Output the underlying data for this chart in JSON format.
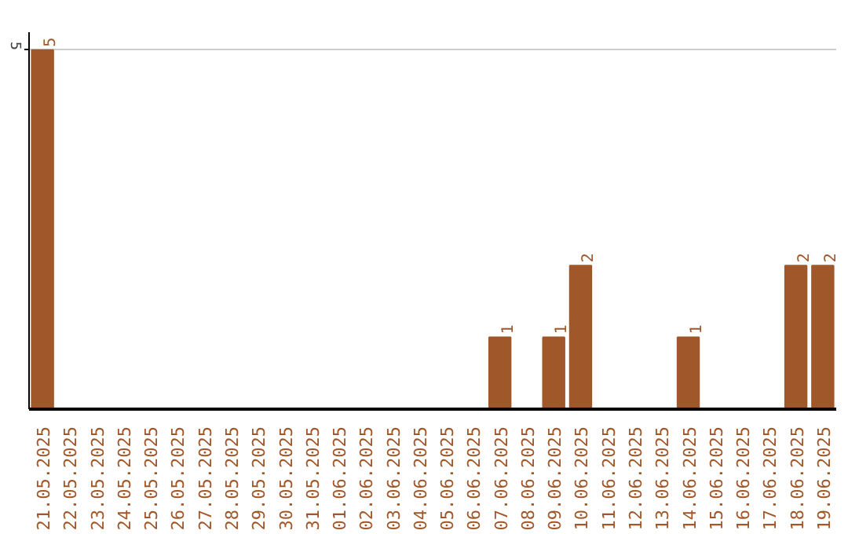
{
  "chart_data": {
    "type": "bar",
    "categories": [
      "21.05.2025",
      "22.05.2025",
      "23.05.2025",
      "24.05.2025",
      "25.05.2025",
      "26.05.2025",
      "27.05.2025",
      "28.05.2025",
      "29.05.2025",
      "30.05.2025",
      "31.05.2025",
      "01.06.2025",
      "02.06.2025",
      "03.06.2025",
      "04.06.2025",
      "05.06.2025",
      "06.06.2025",
      "07.06.2025",
      "08.06.2025",
      "09.06.2025",
      "10.06.2025",
      "11.06.2025",
      "12.06.2025",
      "13.06.2025",
      "14.06.2025",
      "15.06.2025",
      "16.06.2025",
      "17.06.2025",
      "18.06.2025",
      "19.06.2025"
    ],
    "values": [
      5,
      0,
      0,
      0,
      0,
      0,
      0,
      0,
      0,
      0,
      0,
      0,
      0,
      0,
      0,
      0,
      0,
      1,
      0,
      1,
      2,
      0,
      0,
      0,
      1,
      0,
      0,
      0,
      2,
      2
    ],
    "value_labels": [
      "5",
      null,
      null,
      null,
      null,
      null,
      null,
      null,
      null,
      null,
      null,
      null,
      null,
      null,
      null,
      null,
      null,
      "1",
      null,
      "1",
      "2",
      null,
      null,
      null,
      "1",
      null,
      null,
      null,
      "2",
      "2"
    ],
    "color": "#a0572a",
    "ylim": [
      0,
      5.25
    ],
    "yticks": [
      5
    ],
    "grid": "y"
  }
}
